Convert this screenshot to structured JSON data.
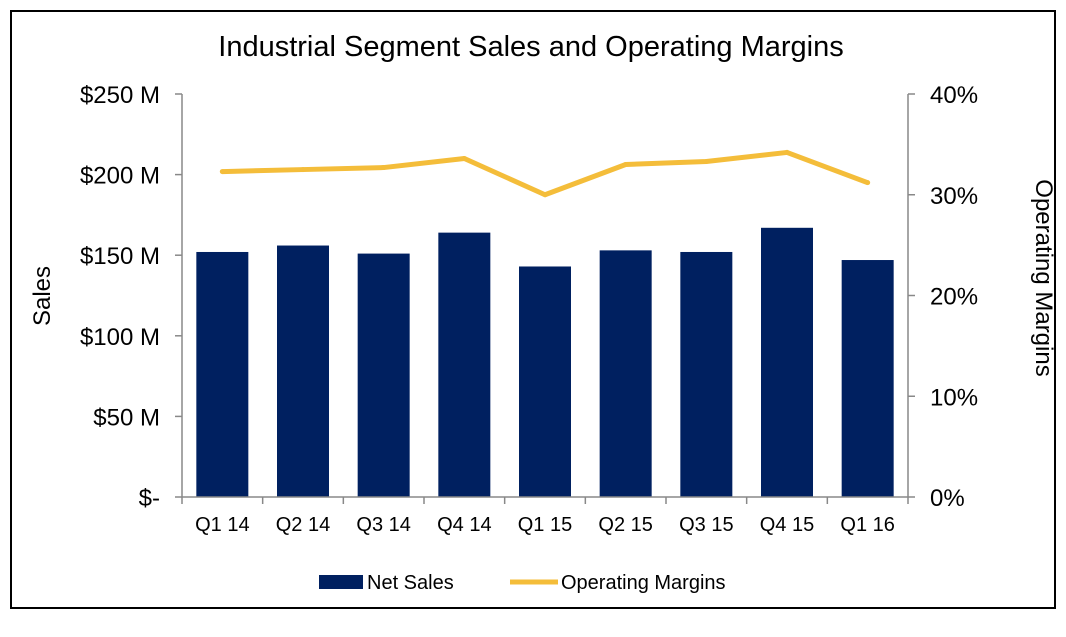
{
  "chart_data": {
    "type": "bar+line",
    "title": "Industrial Segment Sales and Operating Margins",
    "categories": [
      "Q1 14",
      "Q2 14",
      "Q3 14",
      "Q4 14",
      "Q1 15",
      "Q2 15",
      "Q3 15",
      "Q4 15",
      "Q1 16"
    ],
    "series": [
      {
        "name": "Net Sales",
        "type": "bar",
        "axis": "left",
        "color": "#002060",
        "values": [
          152,
          156,
          151,
          164,
          143,
          153,
          152,
          167,
          147
        ]
      },
      {
        "name": "Operating Margins",
        "type": "line",
        "axis": "right",
        "color": "#F4BD3A",
        "values": [
          32.3,
          32.5,
          32.7,
          33.6,
          30.0,
          33.0,
          33.3,
          34.2,
          31.2
        ]
      }
    ],
    "y_left": {
      "label": "Sales",
      "ylim": [
        0,
        250
      ],
      "ticks": [
        0,
        50,
        100,
        150,
        200,
        250
      ],
      "tick_labels": [
        "$-",
        "$50 M",
        "$100 M",
        "$150 M",
        "$200 M",
        "$250 M"
      ]
    },
    "y_right": {
      "label": "Operating Margins",
      "ylim": [
        0,
        40
      ],
      "ticks": [
        0,
        10,
        20,
        30,
        40
      ],
      "tick_labels": [
        "0%",
        "10%",
        "20%",
        "30%",
        "40%"
      ]
    },
    "grid": false,
    "legend": {
      "position": "bottom",
      "entries": [
        "Net Sales",
        "Operating Margins"
      ]
    }
  }
}
